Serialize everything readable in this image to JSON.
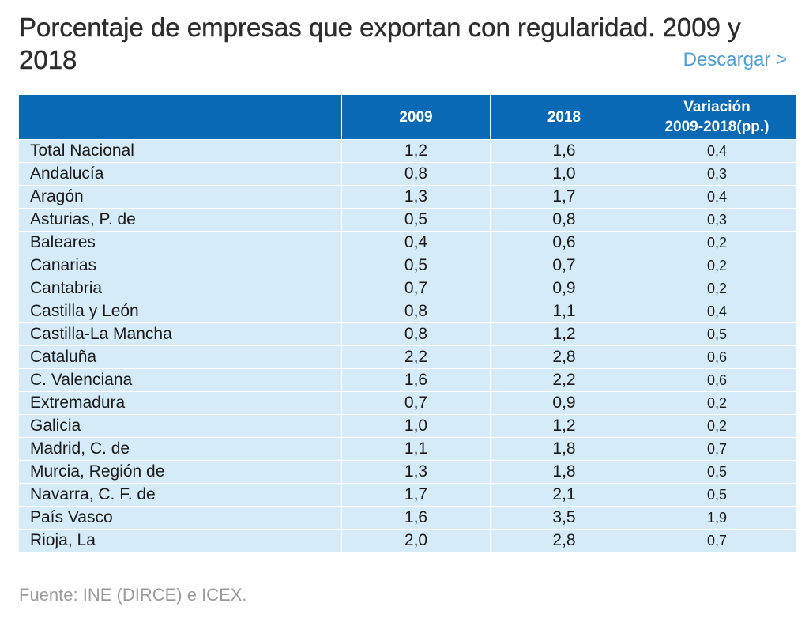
{
  "title": "Porcentaje de empresas que exportan con regularidad. 2009 y 2018",
  "download_label": "Descargar >",
  "source": "Fuente: INE (DIRCE) e ICEX.",
  "colors": {
    "header_bg": "#0a69b4",
    "row_bg": "#d5ebf8",
    "link": "#4a9fd8"
  },
  "chart_data": {
    "type": "table",
    "title": "Porcentaje de empresas que exportan con regularidad. 2009 y 2018",
    "columns": [
      "",
      "2009",
      "2018",
      "Variación 2009-2018(pp.)"
    ],
    "header": {
      "c1": "2009",
      "c2": "2018",
      "c3_line1": "Variación",
      "c3_line2": "2009-2018(pp.)"
    },
    "rows": [
      {
        "name": "Total Nacional",
        "v2009": "1,2",
        "v2018": "1,6",
        "var": "0,4"
      },
      {
        "name": "Andalucía",
        "v2009": "0,8",
        "v2018": "1,0",
        "var": "0,3"
      },
      {
        "name": "Aragón",
        "v2009": "1,3",
        "v2018": "1,7",
        "var": "0,4"
      },
      {
        "name": "Asturias, P. de",
        "v2009": "0,5",
        "v2018": "0,8",
        "var": "0,3"
      },
      {
        "name": "Baleares",
        "v2009": "0,4",
        "v2018": "0,6",
        "var": "0,2"
      },
      {
        "name": "Canarias",
        "v2009": "0,5",
        "v2018": "0,7",
        "var": "0,2"
      },
      {
        "name": "Cantabria",
        "v2009": "0,7",
        "v2018": "0,9",
        "var": "0,2"
      },
      {
        "name": "Castilla y León",
        "v2009": "0,8",
        "v2018": "1,1",
        "var": "0,4"
      },
      {
        "name": "Castilla-La Mancha",
        "v2009": "0,8",
        "v2018": "1,2",
        "var": "0,5"
      },
      {
        "name": "Cataluña",
        "v2009": "2,2",
        "v2018": "2,8",
        "var": "0,6"
      },
      {
        "name": "C. Valenciana",
        "v2009": "1,6",
        "v2018": "2,2",
        "var": "0,6"
      },
      {
        "name": "Extremadura",
        "v2009": "0,7",
        "v2018": "0,9",
        "var": "0,2"
      },
      {
        "name": "Galicia",
        "v2009": "1,0",
        "v2018": "1,2",
        "var": "0,2"
      },
      {
        "name": "Madrid, C. de",
        "v2009": "1,1",
        "v2018": "1,8",
        "var": "0,7"
      },
      {
        "name": "Murcia, Región de",
        "v2009": "1,3",
        "v2018": "1,8",
        "var": "0,5"
      },
      {
        "name": "Navarra, C. F. de",
        "v2009": "1,7",
        "v2018": "2,1",
        "var": "0,5"
      },
      {
        "name": "País Vasco",
        "v2009": "1,6",
        "v2018": "3,5",
        "var": "1,9"
      },
      {
        "name": "Rioja, La",
        "v2009": "2,0",
        "v2018": "2,8",
        "var": "0,7"
      }
    ]
  }
}
